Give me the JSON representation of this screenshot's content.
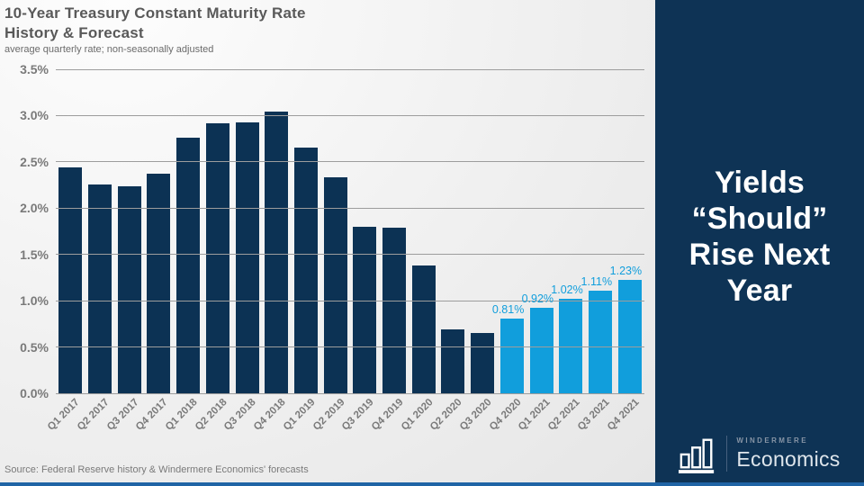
{
  "header": {
    "title_line1": "10-Year Treasury Constant Maturity Rate",
    "title_line2": "History & Forecast",
    "subtitle": "average quarterly rate; non-seasonally adjusted"
  },
  "footer": {
    "source": "Source: Federal Reserve history & Windermere Economics' forecasts"
  },
  "sidebar": {
    "headline": "Yields “Should” Rise Next Year",
    "headline_lines": [
      "Yields",
      "“Should”",
      "Rise Next",
      "Year"
    ],
    "brand": {
      "name_top": "WINDERMERE",
      "name_bottom": "Economics",
      "icon": "bar-chart-icon"
    }
  },
  "colors": {
    "history_bar": "#0c3254",
    "forecast_bar": "#119edc",
    "sidebar_bg": "#0e3355",
    "accent_strip": "#1f64a5",
    "grid": "#9d9d9d",
    "axis_text": "#7a7a7a",
    "title_text": "#595959"
  },
  "chart_data": {
    "type": "bar",
    "title": "10-Year Treasury Constant Maturity Rate History & Forecast",
    "subtitle": "average quarterly rate; non-seasonally adjusted",
    "categories": [
      "Q1 2017",
      "Q2 2017",
      "Q3 2017",
      "Q4 2017",
      "Q1 2018",
      "Q2 2018",
      "Q3 2018",
      "Q4 2018",
      "Q1 2019",
      "Q2 2019",
      "Q3 2019",
      "Q4 2019",
      "Q1 2020",
      "Q2 2020",
      "Q3 2020",
      "Q4 2020",
      "Q1 2021",
      "Q2 2021",
      "Q3 2021",
      "Q4 2021"
    ],
    "series": [
      {
        "name": "History",
        "color": "#0c3254",
        "values": [
          2.44,
          2.26,
          2.24,
          2.37,
          2.76,
          2.92,
          2.93,
          3.04,
          2.65,
          2.33,
          1.8,
          1.79,
          1.38,
          0.69,
          0.65,
          null,
          null,
          null,
          null,
          null
        ],
        "value_labels": [
          null,
          null,
          null,
          null,
          null,
          null,
          null,
          null,
          null,
          null,
          null,
          null,
          null,
          null,
          null,
          null,
          null,
          null,
          null,
          null
        ]
      },
      {
        "name": "Forecast",
        "color": "#119edc",
        "values": [
          null,
          null,
          null,
          null,
          null,
          null,
          null,
          null,
          null,
          null,
          null,
          null,
          null,
          null,
          null,
          0.81,
          0.92,
          1.02,
          1.11,
          1.23
        ],
        "value_labels": [
          null,
          null,
          null,
          null,
          null,
          null,
          null,
          null,
          null,
          null,
          null,
          null,
          null,
          null,
          null,
          "0.81%",
          "0.92%",
          "1.02%",
          "1.11%",
          "1.23%"
        ]
      }
    ],
    "xlabel": "",
    "ylabel": "",
    "ylim": [
      0,
      3.5
    ],
    "yticks": [
      {
        "value": 3.5,
        "label": "3.5%"
      },
      {
        "value": 3.0,
        "label": "3.0%"
      },
      {
        "value": 2.5,
        "label": "2.5%"
      },
      {
        "value": 2.0,
        "label": "2.0%"
      },
      {
        "value": 1.5,
        "label": "1.5%"
      },
      {
        "value": 1.0,
        "label": "1.0%"
      },
      {
        "value": 0.5,
        "label": "0.5%"
      },
      {
        "value": 0.0,
        "label": "0.0%"
      }
    ],
    "grid": "horizontal",
    "legend": "none"
  }
}
